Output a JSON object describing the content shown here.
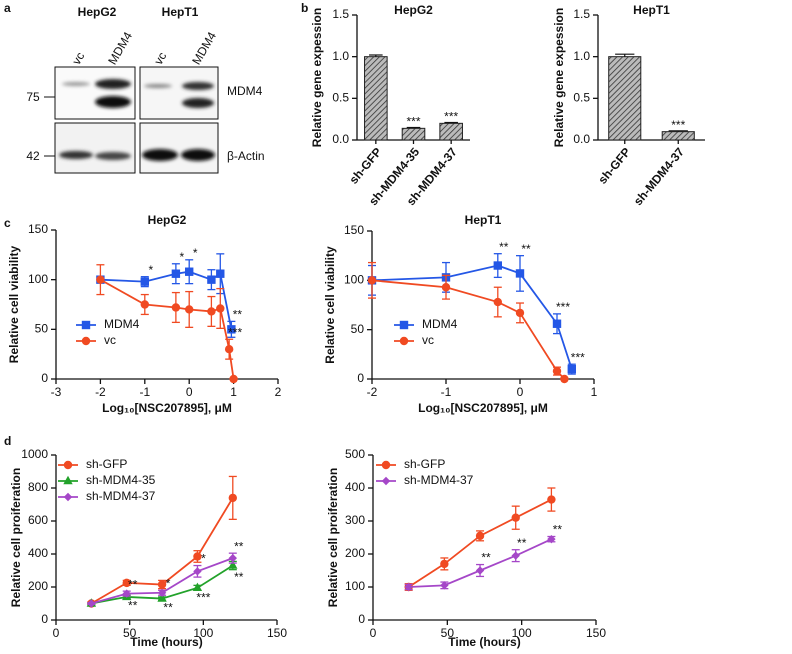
{
  "panel_labels": [
    "a",
    "b",
    "c",
    "d"
  ],
  "blot": {
    "cell_lines": [
      "HepG2",
      "HepT1"
    ],
    "lanes": [
      "vc",
      "MDM4",
      "vc",
      "MDM4"
    ],
    "markers": [
      "75",
      "42"
    ],
    "proteins": [
      "MDM4",
      "β-Actin"
    ]
  },
  "chart_data": [
    {
      "type": "bar",
      "title": "HepG2",
      "y_label": "Relative gene expession",
      "categories": [
        "sh-GFP",
        "sh-MDM4-35",
        "sh-MDM4-37"
      ],
      "values": [
        1.0,
        0.14,
        0.2
      ],
      "errors": [
        0.02,
        0.01,
        0.01
      ],
      "significance": [
        null,
        "***",
        "***"
      ],
      "ylim": [
        0,
        1.5
      ],
      "yticks": [
        {
          "value": 0,
          "label": "0.0"
        },
        0.5,
        {
          "value": 1,
          "label": "1.0"
        },
        1.5
      ]
    },
    {
      "type": "bar",
      "title": "HepT1",
      "y_label": "Relative gene expession",
      "categories": [
        "sh-GFP",
        "sh-MDM4-37"
      ],
      "values": [
        1.0,
        0.1
      ],
      "errors": [
        0.03,
        0.01
      ],
      "significance": [
        null,
        "***"
      ],
      "ylim": [
        0,
        1.5
      ],
      "yticks": [
        {
          "value": 0,
          "label": "0.0"
        },
        0.5,
        {
          "value": 1,
          "label": "1.0"
        },
        1.5
      ]
    },
    {
      "type": "line",
      "title": "HepG2",
      "x_label": "Log₁₀[NSC207895], μM",
      "y_label": "Relative cell viability",
      "xlim": [
        -3,
        2
      ],
      "xticks": [
        -3,
        -2,
        -1,
        0,
        1,
        2
      ],
      "ylim": [
        0,
        150
      ],
      "yticks": [
        0,
        50,
        100,
        150
      ],
      "series": [
        {
          "name": "MDM4",
          "color": "#2457e6",
          "marker": "square",
          "x": [
            -2,
            -1,
            -0.3,
            0,
            0.5,
            0.7,
            0.95
          ],
          "values": [
            100,
            98,
            106,
            108,
            100,
            106,
            50
          ],
          "errors": [
            0,
            5,
            10,
            12,
            10,
            20,
            8
          ],
          "significance": [
            null,
            "*",
            "*",
            "*",
            null,
            null,
            "**"
          ]
        },
        {
          "name": "vc",
          "color": "#f04a22",
          "marker": "circle",
          "x": [
            -2,
            -1,
            -0.3,
            0,
            0.5,
            0.7,
            0.9,
            1.0
          ],
          "values": [
            100,
            75,
            72,
            70,
            68,
            71,
            30,
            0
          ],
          "errors": [
            15,
            10,
            15,
            18,
            15,
            20,
            10,
            0
          ],
          "significance": [
            null,
            null,
            null,
            null,
            null,
            null,
            "***",
            null
          ]
        }
      ]
    },
    {
      "type": "line",
      "title": "HepT1",
      "x_label": "Log₁₀[NSC207895], μM",
      "y_label": "Relative cell viability",
      "xlim": [
        -2,
        1
      ],
      "xticks": [
        -2,
        -1,
        0,
        1
      ],
      "ylim": [
        0,
        150
      ],
      "yticks": [
        0,
        50,
        100,
        150
      ],
      "series": [
        {
          "name": "MDM4",
          "color": "#2457e6",
          "marker": "square",
          "x": [
            -2,
            -1,
            -0.3,
            0,
            0.5,
            0.7
          ],
          "values": [
            100,
            103,
            115,
            107,
            56,
            10
          ],
          "errors": [
            15,
            15,
            12,
            18,
            10,
            5
          ],
          "significance": [
            null,
            null,
            "**",
            "**",
            "***",
            "***"
          ]
        },
        {
          "name": "vc",
          "color": "#f04a22",
          "marker": "circle",
          "x": [
            -2,
            -1,
            -0.3,
            0,
            0.5,
            0.6
          ],
          "values": [
            100,
            93,
            78,
            67,
            8,
            0
          ],
          "errors": [
            18,
            12,
            15,
            10,
            4,
            0
          ]
        }
      ]
    },
    {
      "type": "line",
      "x_label": "Time (hours)",
      "y_label": "Relative cell proiferation",
      "xlim": [
        0,
        150
      ],
      "xticks": [
        0,
        50,
        100,
        150
      ],
      "ylim": [
        0,
        1000
      ],
      "yticks": [
        0,
        200,
        400,
        600,
        800,
        1000
      ],
      "x": [
        24,
        48,
        72,
        96,
        120
      ],
      "series": [
        {
          "name": "sh-GFP",
          "color": "#f04a22",
          "marker": "circle",
          "values": [
            100,
            225,
            215,
            385,
            740
          ],
          "errors": [
            10,
            15,
            25,
            35,
            130
          ]
        },
        {
          "name": "sh-MDM4-35",
          "color": "#22a22a",
          "marker": "triangle",
          "values": [
            100,
            140,
            130,
            195,
            330
          ],
          "errors": [
            5,
            10,
            10,
            15,
            25
          ],
          "significance": [
            null,
            "**",
            "**",
            "***",
            "**"
          ]
        },
        {
          "name": "sh-MDM4-37",
          "color": "#a547c8",
          "marker": "diamond",
          "values": [
            100,
            160,
            165,
            295,
            375
          ],
          "errors": [
            5,
            15,
            15,
            35,
            30
          ],
          "significance": [
            null,
            "**",
            "*",
            "*",
            "**"
          ]
        }
      ]
    },
    {
      "type": "line",
      "x_label": "Time (hours)",
      "y_label": "Relative cell proiferation",
      "xlim": [
        0,
        150
      ],
      "xticks": [
        0,
        50,
        100,
        150
      ],
      "ylim": [
        0,
        500
      ],
      "yticks": [
        0,
        100,
        200,
        300,
        400,
        500
      ],
      "x": [
        24,
        48,
        72,
        96,
        120
      ],
      "series": [
        {
          "name": "sh-GFP",
          "color": "#f04a22",
          "marker": "circle",
          "values": [
            100,
            170,
            255,
            310,
            365
          ],
          "errors": [
            10,
            18,
            15,
            35,
            35
          ]
        },
        {
          "name": "sh-MDM4-37",
          "color": "#a547c8",
          "marker": "diamond",
          "values": [
            100,
            105,
            150,
            195,
            245
          ],
          "errors": [
            8,
            10,
            18,
            18,
            8
          ],
          "significance": [
            null,
            null,
            "**",
            "**",
            "**"
          ]
        }
      ]
    }
  ]
}
